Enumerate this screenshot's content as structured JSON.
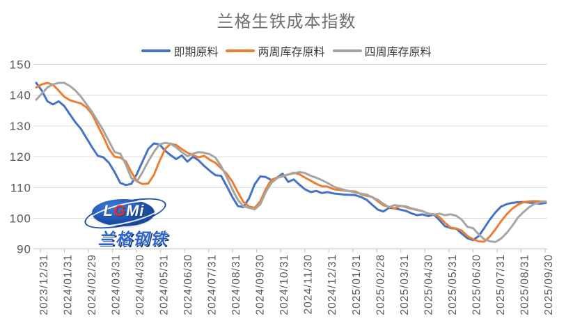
{
  "page": {
    "background": "#FFFFFF"
  },
  "chart": {
    "title": "兰格生铁成本指数",
    "title_color": "#6F6F6F"
  },
  "chart_data": {
    "type": "line",
    "title": "兰格生铁成本指数",
    "legend_position": "top-center",
    "grid": "horizontal",
    "x_axis": {
      "note": "weekly data points, 92 per series, 2023/12/31 to 2025/09/30, labels monthly, rotated 90",
      "tick_labels": [
        "2023/12/31",
        "2024/01/31",
        "2024/02/29",
        "2024/03/31",
        "2024/04/30",
        "2024/05/31",
        "2024/06/30",
        "2024/07/31",
        "2024/08/31",
        "2024/09/30",
        "2024/10/31",
        "2024/11/30",
        "2024/12/31",
        "2025/01/31",
        "2025/02/28",
        "2025/03/31",
        "2025/04/30",
        "2025/05/31",
        "2025/06/30",
        "2025/07/31",
        "2025/08/31",
        "2025/09/30"
      ]
    },
    "y_axis": {
      "min": 90,
      "max": 150,
      "ticks": [
        150,
        140,
        130,
        120,
        110,
        100,
        90
      ]
    },
    "series": [
      {
        "name": "即期原料",
        "color": "#4472C4",
        "values": [
          144,
          141.5,
          138,
          137,
          138,
          136.5,
          133.8,
          131.2,
          129,
          126,
          123,
          120.3,
          119.8,
          118,
          115,
          111.5,
          110.8,
          111.2,
          114.5,
          118.5,
          122.5,
          124.3,
          124,
          122,
          120.5,
          119.2,
          120.4,
          118.4,
          120,
          118.8,
          117,
          115.4,
          114,
          113.8,
          110.5,
          107,
          104,
          103.6,
          106.5,
          111,
          113.6,
          113.4,
          112.4,
          113.2,
          114.5,
          111.8,
          112.6,
          110.9,
          109.4,
          108.5,
          108.9,
          108.2,
          108.5,
          108.1,
          107.9,
          107.7,
          107.6,
          107.5,
          106.9,
          106,
          104.4,
          102.8,
          102.2,
          103.4,
          103.2,
          102.8,
          102.4,
          101.6,
          101,
          101.3,
          100.7,
          101.2,
          99.4,
          97.4,
          96.8,
          96.6,
          95,
          93.5,
          92.9,
          94.2,
          96.8,
          99.6,
          101.9,
          103.8,
          104.6,
          105,
          105.2,
          105.3,
          105.1,
          104.9,
          104.7,
          105
        ]
      },
      {
        "name": "两周库存原料",
        "color": "#ED7D31",
        "values": [
          142.5,
          143.5,
          144,
          143.4,
          141.5,
          139.5,
          138.4,
          137.8,
          137.3,
          136,
          133.8,
          130,
          126.5,
          122.5,
          120,
          119.7,
          118.5,
          115,
          112,
          111.1,
          111.3,
          114,
          118.5,
          122.5,
          124.2,
          123.8,
          122.5,
          121.3,
          120.5,
          119.8,
          120.3,
          119,
          118,
          116.3,
          114.5,
          112,
          108.5,
          105.3,
          103.8,
          103.4,
          105.5,
          109.5,
          112.5,
          113.2,
          113.6,
          114.2,
          114.8,
          114.3,
          113.2,
          112.2,
          111.2,
          110.4,
          110.3,
          109.5,
          109.2,
          109,
          108.8,
          108.7,
          107.8,
          107.3,
          106.9,
          105.5,
          104.2,
          103.7,
          103.2,
          104.1,
          103.6,
          103.1,
          102.7,
          102.3,
          101.5,
          101.3,
          100.4,
          98.5,
          97,
          96.7,
          96,
          94.2,
          93.2,
          92.5,
          92.4,
          94.1,
          96.4,
          99,
          101.3,
          103.1,
          104.4,
          105.2,
          105.5,
          105.6,
          105.5,
          105.4
        ]
      },
      {
        "name": "四周库存原料",
        "color": "#A5A5A5",
        "values": [
          138.5,
          140.5,
          142.5,
          143.5,
          144,
          144,
          143,
          141.5,
          139.5,
          137,
          134.5,
          131.5,
          128.5,
          125,
          121.5,
          121,
          117.5,
          113,
          112,
          115,
          118.5,
          121.5,
          124,
          124.5,
          124.2,
          123,
          121.5,
          120.2,
          121,
          121.5,
          121.3,
          120.8,
          119.7,
          117,
          113.5,
          109.5,
          106,
          103.9,
          103.4,
          102.9,
          104.5,
          108.5,
          111.5,
          113,
          113.8,
          114.2,
          114.6,
          115,
          114.7,
          113.8,
          113.2,
          112.4,
          111.5,
          110.4,
          109.7,
          109.2,
          108.8,
          108.3,
          108,
          107.7,
          106.8,
          106,
          104.7,
          103.6,
          104.3,
          104,
          103.9,
          103.2,
          102.8,
          102.3,
          101.5,
          101.2,
          101.5,
          101,
          101.3,
          100.8,
          99.5,
          97.2,
          96.8,
          94.8,
          93.2,
          92.5,
          92.3,
          93.4,
          95.2,
          97.5,
          100.2,
          102,
          103.6,
          104.7,
          105.2,
          105.5
        ]
      }
    ]
  },
  "watermark": {
    "logo_l": "L",
    "logo_g": "G",
    "logo_mi": "Mi",
    "subtext": "兰格钢铁"
  },
  "colors": {
    "gridline": "#D9D9D9",
    "axis_line": "#BFBFBF",
    "axis_label": "#595959",
    "legend_text": "#404040",
    "series_blue": "#4472C4",
    "series_orange": "#ED7D31",
    "series_gray": "#A5A5A5",
    "logo_blue": "#1B4EA8",
    "logo_red": "#E03030",
    "logo_subtext_blue": "#2F63CC"
  }
}
